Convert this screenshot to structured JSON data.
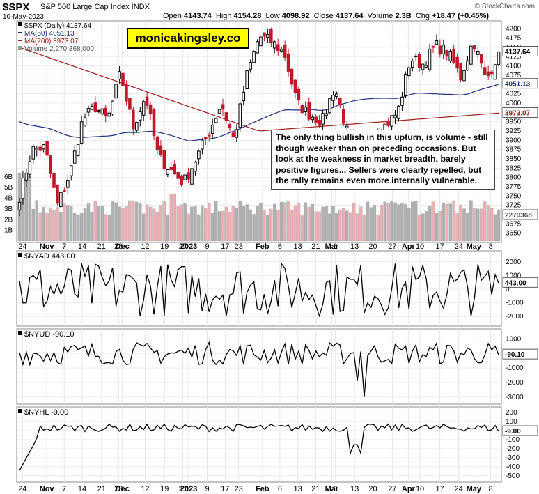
{
  "header": {
    "symbol": "$SPX",
    "description": "S&P 500 Large Cap Index  INDX",
    "date": "10-May-2023",
    "watermark": "© StockCharts.com",
    "open_label": "Open",
    "open": "4143.74",
    "high_label": "High",
    "high": "4154.28",
    "low_label": "Low",
    "low": "4098.92",
    "close_label": "Close",
    "close": "4137.64",
    "volume_label": "Volume",
    "volume": "2.3B",
    "chg_label": "Chg",
    "chg": "+18.47 (+0.45%)"
  },
  "legend": {
    "price": "$SPX (Daily) 4137.64",
    "ma50": "MA(50) 4051.13",
    "ma200": "MA(200) 3973.07",
    "volume": "Volume 2,270,368,000"
  },
  "watermark_brand": "monicakingsley.co",
  "annotation": "The only thing bullish in this upturn, is volume - still though weaker than on preceding occasions. But look at the weakness in market breadth, barely positive figures... Sellers were clearly repelled, but the rally remains even more internally vulnerable.",
  "value_tags": {
    "price": "4137.64",
    "ma50": "4051.13",
    "ma200": "3973.07",
    "volume": "2270368",
    "nyad": "443.00",
    "nyud": "-90.10",
    "nyhl": "-9.00"
  },
  "x_axis_labels": [
    "24",
    "Nov",
    "7",
    "14",
    "21",
    "28",
    "Dec",
    "12",
    "19",
    "27",
    "2023",
    "9",
    "17",
    "23",
    "Feb",
    "6",
    "13",
    "21",
    "Mar",
    "6",
    "13",
    "20",
    "27",
    "Apr",
    "10",
    "17",
    "24",
    "May",
    "8"
  ],
  "colors": {
    "up": "#000000",
    "down": "#c0172b",
    "ma50": "#1f2f7a",
    "ma200": "#a01a1a",
    "vol_up": "#b0b0b0",
    "vol_down": "#eab0b5",
    "note_bg": "#ffffff",
    "brand_bg": "#ffff00"
  },
  "chart_data": [
    {
      "type": "candlestick",
      "title": "$SPX (Daily) 4137.64",
      "y_ticks": [
        3650,
        3675,
        3700,
        3725,
        3750,
        3775,
        3800,
        3825,
        3850,
        3875,
        3900,
        3925,
        3950,
        3975,
        4000,
        4025,
        4050,
        4075,
        4100,
        4125,
        4150,
        4175,
        4200
      ],
      "ylim": [
        3640,
        4210
      ],
      "volume_ticks": [
        "1B",
        "2B",
        "3B",
        "4B",
        "5B",
        "6B"
      ],
      "volume_ylim": [
        0,
        7
      ],
      "ohlc_waypoints": [
        {
          "x": "Oct 21",
          "close": 3750
        },
        {
          "x": "Oct 27",
          "close": 3875
        },
        {
          "x": "Oct 31",
          "close": 3880
        },
        {
          "x": "Nov 3",
          "close": 3725
        },
        {
          "x": "Nov 7",
          "close": 3810
        },
        {
          "x": "Nov 10",
          "close": 3955
        },
        {
          "x": "Nov 15",
          "close": 3990
        },
        {
          "x": "Nov 21",
          "close": 3955
        },
        {
          "x": "Nov 30",
          "close": 4080
        },
        {
          "x": "Dec 7",
          "close": 3935
        },
        {
          "x": "Dec 13",
          "close": 4020
        },
        {
          "x": "Dec 16",
          "close": 3855
        },
        {
          "x": "Dec 22",
          "close": 3820
        },
        {
          "x": "Dec 28",
          "close": 3785
        },
        {
          "x": "Jan 4",
          "close": 3850
        },
        {
          "x": "Jan 10",
          "close": 3920
        },
        {
          "x": "Jan 13",
          "close": 3999
        },
        {
          "x": "Jan 19",
          "close": 3900
        },
        {
          "x": "Jan 27",
          "close": 4070
        },
        {
          "x": "Feb 2",
          "close": 4180
        },
        {
          "x": "Feb 7",
          "close": 4165
        },
        {
          "x": "Feb 14",
          "close": 4135
        },
        {
          "x": "Feb 21",
          "close": 4000
        },
        {
          "x": "Feb 24",
          "close": 3970
        },
        {
          "x": "Mar 1",
          "close": 3950
        },
        {
          "x": "Mar 6",
          "close": 4045
        },
        {
          "x": "Mar 9",
          "close": 3920
        },
        {
          "x": "Mar 13",
          "close": 3855
        },
        {
          "x": "Mar 17",
          "close": 3920
        },
        {
          "x": "Mar 22",
          "close": 3940
        },
        {
          "x": "Mar 27",
          "close": 3975
        },
        {
          "x": "Apr 3",
          "close": 4120
        },
        {
          "x": "Apr 10",
          "close": 4105
        },
        {
          "x": "Apr 18",
          "close": 4155
        },
        {
          "x": "Apr 21",
          "close": 4135
        },
        {
          "x": "Apr 25",
          "close": 4070
        },
        {
          "x": "May 1",
          "close": 4170
        },
        {
          "x": "May 4",
          "close": 4060
        },
        {
          "x": "May 10",
          "close": 4137.64
        }
      ],
      "ma50_end": 4051.13,
      "ma200_end": 3973.07,
      "volume_end": 2270368000
    },
    {
      "type": "line",
      "title": "$NYAD 443.00",
      "y_ticks": [
        2000,
        1000,
        0,
        -1000,
        -2000
      ],
      "ylim": [
        -2500,
        2600
      ],
      "last": 443.0
    },
    {
      "type": "line",
      "title": "$NYUD -90.10",
      "y_ticks": [
        1000,
        0,
        -1000,
        -2000,
        -3000
      ],
      "ylim": [
        -3300,
        1500
      ],
      "last": -90.1
    },
    {
      "type": "line",
      "title": "$NYHL -9.00",
      "y_ticks": [
        200,
        100,
        0,
        -100,
        -200,
        -300,
        -400,
        -500
      ],
      "ylim": [
        -540,
        230
      ],
      "last": -9.0
    }
  ]
}
